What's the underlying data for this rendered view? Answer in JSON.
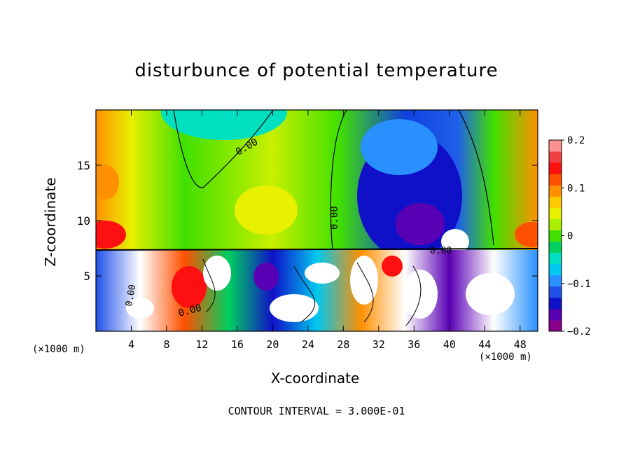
{
  "chart_data": {
    "type": "heatmap",
    "title": "disturbunce of potential temperature",
    "xlabel": "X-coordinate",
    "ylabel": "Z-coordinate",
    "x_unit": "(×1000 m)",
    "x_ticks": [
      "4",
      "8",
      "12",
      "16",
      "20",
      "24",
      "28",
      "32",
      "36",
      "40",
      "44",
      "48"
    ],
    "y_ticks": [
      "5",
      "10",
      "15"
    ],
    "xlim": [
      0,
      50
    ],
    "ylim": [
      0,
      20
    ],
    "colorbar": {
      "ticks": [
        "0.2",
        "0.1",
        "0",
        "−0.1",
        "−0.2"
      ],
      "range": [
        -0.2,
        0.2
      ],
      "colors": [
        "#8a008a",
        "#5a00b4",
        "#1010c8",
        "#2050e8",
        "#2890ff",
        "#00c8f0",
        "#00e0c0",
        "#00d060",
        "#40e000",
        "#a8f000",
        "#e8f000",
        "#ffc800",
        "#ff9000",
        "#ff5000",
        "#ff1010",
        "#f04040",
        "#ff9090"
      ]
    },
    "contour_labels": [
      "0.00",
      "0.00",
      "0.00",
      "0.00",
      "0.00"
    ],
    "footer": "CONTOUR INTERVAL = 3.000E-01"
  }
}
